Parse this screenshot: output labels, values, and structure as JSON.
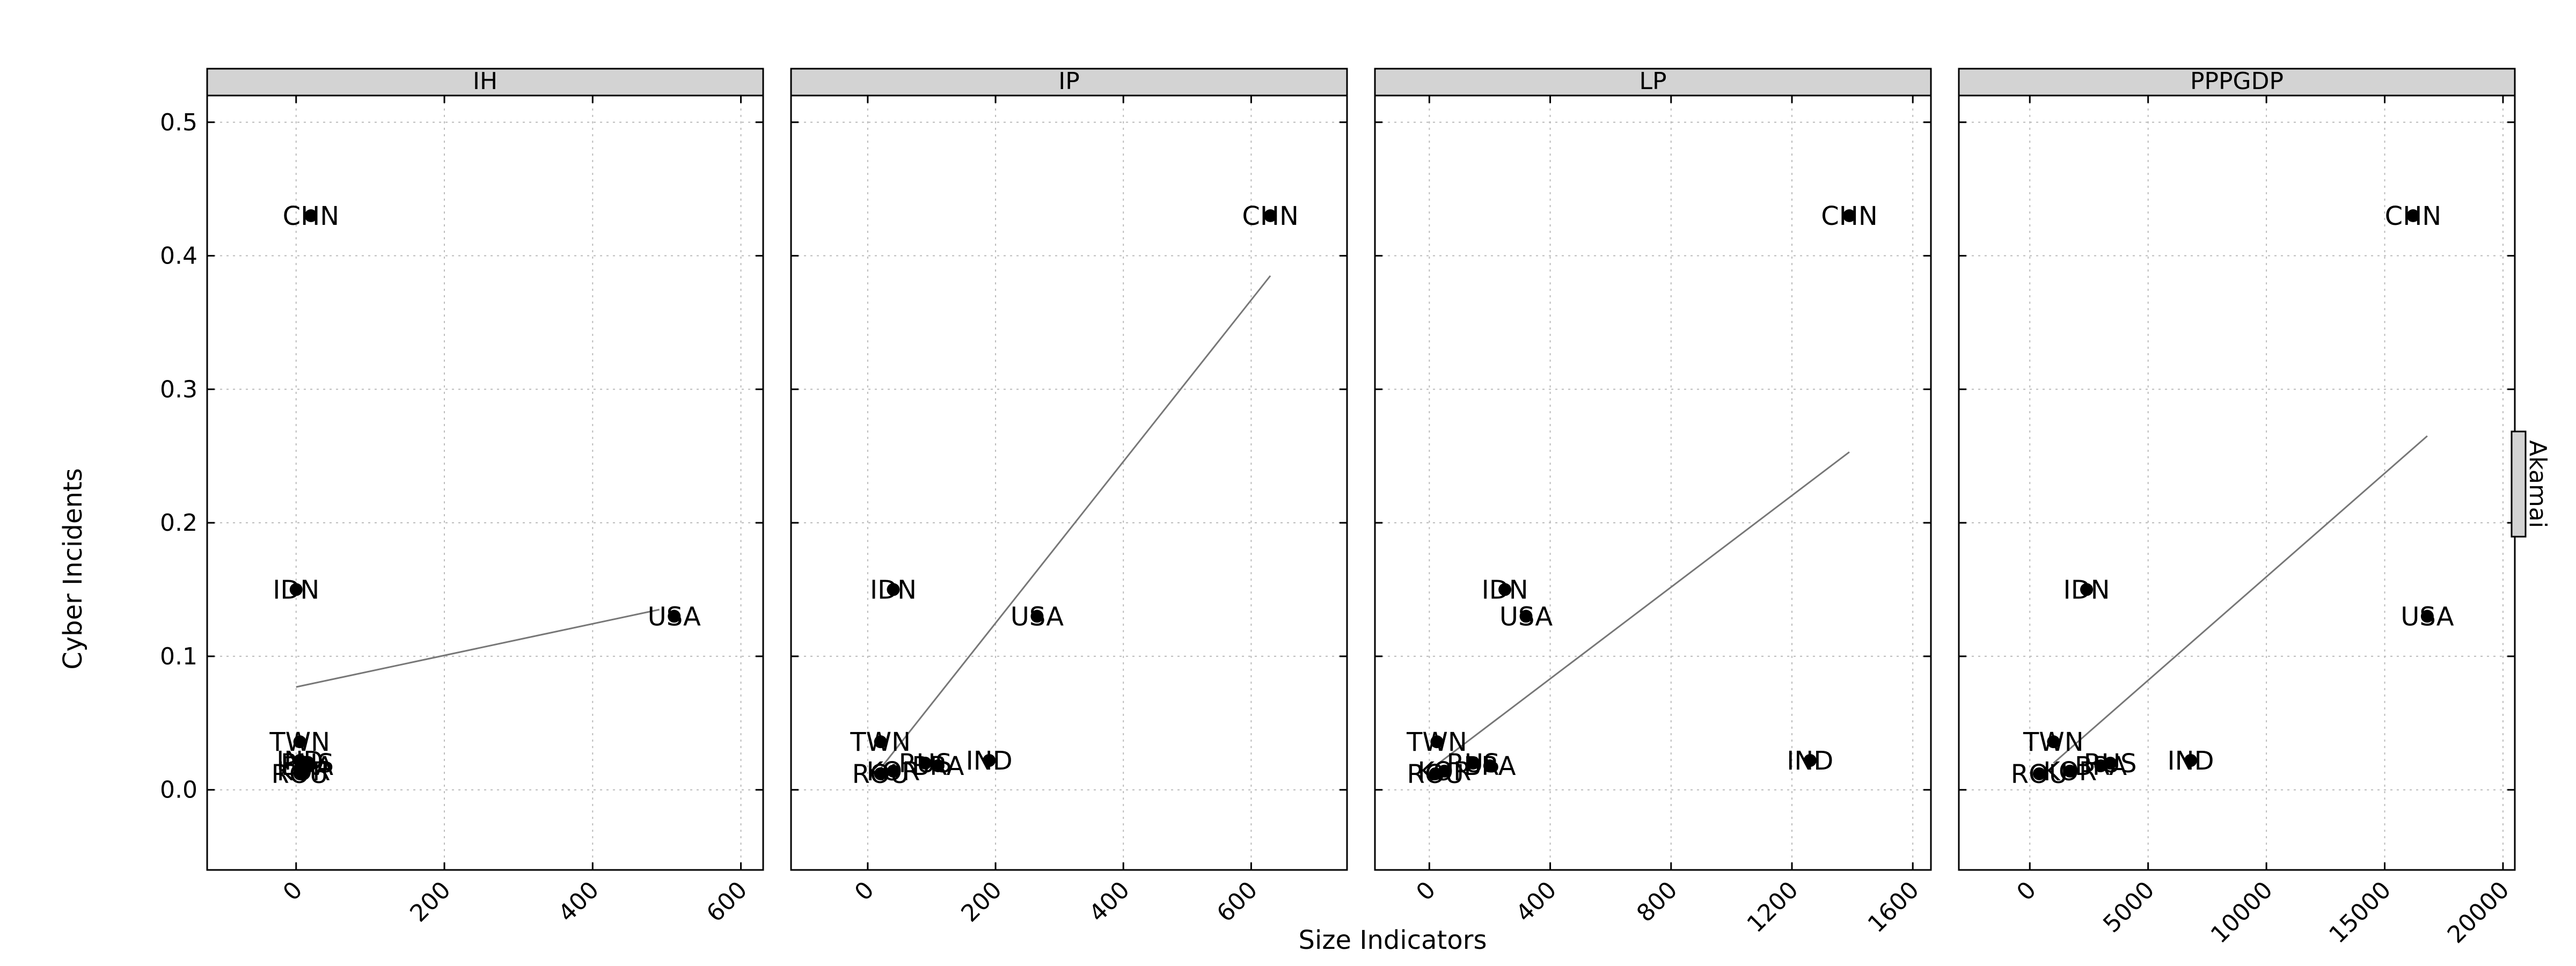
{
  "chart_data": {
    "type": "scatter",
    "xlabel": "Size Indicators",
    "ylabel": "Cyber Incidents",
    "strip_label": "Akamai",
    "ylim": [
      -0.06,
      0.52
    ],
    "y_ticks": [
      "0.0",
      "0.1",
      "0.2",
      "0.3",
      "0.4",
      "0.5"
    ],
    "y_tick_values": [
      0.0,
      0.1,
      0.2,
      0.3,
      0.4,
      0.5
    ],
    "grid": true,
    "colors": {
      "points": "#000000",
      "fit_line": "#777777",
      "strip": "#d3d3d3",
      "grid": "#bbbbbb"
    },
    "panels": [
      {
        "title": "IH",
        "xlim": [
          -120,
          630
        ],
        "x_ticks": [
          "0",
          "200",
          "400",
          "600"
        ],
        "x_tick_values": [
          0,
          200,
          400,
          600
        ],
        "points": [
          {
            "label": "CHN",
            "x": 20,
            "y": 0.43
          },
          {
            "label": "IDN",
            "x": 0,
            "y": 0.15
          },
          {
            "label": "USA",
            "x": 510,
            "y": 0.13
          },
          {
            "label": "TWN",
            "x": 5,
            "y": 0.036
          },
          {
            "label": "IND",
            "x": 5,
            "y": 0.022
          },
          {
            "label": "RUS",
            "x": 15,
            "y": 0.02
          },
          {
            "label": "BRA",
            "x": 15,
            "y": 0.018
          },
          {
            "label": "KOR",
            "x": 10,
            "y": 0.014
          },
          {
            "label": "ROU",
            "x": 5,
            "y": 0.012
          }
        ],
        "fit_line": {
          "x": [
            0,
            490
          ],
          "y": [
            0.077,
            0.135
          ]
        }
      },
      {
        "title": "IP",
        "xlim": [
          -120,
          750
        ],
        "x_ticks": [
          "0",
          "200",
          "400",
          "600"
        ],
        "x_tick_values": [
          0,
          200,
          400,
          600
        ],
        "points": [
          {
            "label": "CHN",
            "x": 630,
            "y": 0.43
          },
          {
            "label": "IDN",
            "x": 40,
            "y": 0.15
          },
          {
            "label": "USA",
            "x": 265,
            "y": 0.13
          },
          {
            "label": "TWN",
            "x": 20,
            "y": 0.036
          },
          {
            "label": "IND",
            "x": 190,
            "y": 0.022
          },
          {
            "label": "RUS",
            "x": 90,
            "y": 0.02
          },
          {
            "label": "BRA",
            "x": 110,
            "y": 0.018
          },
          {
            "label": "KOR",
            "x": 40,
            "y": 0.014
          },
          {
            "label": "ROU",
            "x": 20,
            "y": 0.012
          }
        ],
        "fit_line": {
          "x": [
            20,
            630
          ],
          "y": [
            0.016,
            0.385
          ]
        }
      },
      {
        "title": "LP",
        "xlim": [
          -180,
          1660
        ],
        "x_ticks": [
          "0",
          "400",
          "800",
          "1200",
          "1600"
        ],
        "x_tick_values": [
          0,
          400,
          800,
          1200,
          1600
        ],
        "points": [
          {
            "label": "CHN",
            "x": 1390,
            "y": 0.43
          },
          {
            "label": "IDN",
            "x": 250,
            "y": 0.15
          },
          {
            "label": "USA",
            "x": 320,
            "y": 0.13
          },
          {
            "label": "TWN",
            "x": 25,
            "y": 0.036
          },
          {
            "label": "IND",
            "x": 1260,
            "y": 0.022
          },
          {
            "label": "RUS",
            "x": 145,
            "y": 0.02
          },
          {
            "label": "BRA",
            "x": 200,
            "y": 0.018
          },
          {
            "label": "KOR",
            "x": 50,
            "y": 0.014
          },
          {
            "label": "ROU",
            "x": 20,
            "y": 0.012
          }
        ],
        "fit_line": {
          "x": [
            20,
            1390
          ],
          "y": [
            0.018,
            0.253
          ]
        }
      },
      {
        "title": "PPPGDP",
        "xlim": [
          -3000,
          20500
        ],
        "x_ticks": [
          "0",
          "5000",
          "10000",
          "15000",
          "20000"
        ],
        "x_tick_values": [
          0,
          5000,
          10000,
          15000,
          20000
        ],
        "points": [
          {
            "label": "CHN",
            "x": 16200,
            "y": 0.43
          },
          {
            "label": "IDN",
            "x": 2400,
            "y": 0.15
          },
          {
            "label": "USA",
            "x": 16800,
            "y": 0.13
          },
          {
            "label": "TWN",
            "x": 1000,
            "y": 0.036
          },
          {
            "label": "IND",
            "x": 6800,
            "y": 0.022
          },
          {
            "label": "RUS",
            "x": 3400,
            "y": 0.02
          },
          {
            "label": "BRA",
            "x": 3000,
            "y": 0.018
          },
          {
            "label": "KOR",
            "x": 1700,
            "y": 0.014
          },
          {
            "label": "ROU",
            "x": 400,
            "y": 0.012
          }
        ],
        "fit_line": {
          "x": [
            1000,
            16800
          ],
          "y": [
            0.02,
            0.265
          ]
        }
      }
    ]
  }
}
